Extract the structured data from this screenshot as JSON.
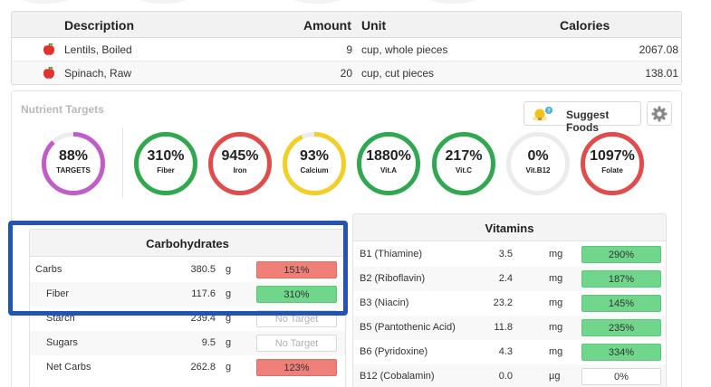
{
  "food_table": {
    "headers": {
      "description": "Description",
      "amount": "Amount",
      "unit": "Unit",
      "calories": "Calories"
    },
    "rows": [
      {
        "description": "Lentils, Boiled",
        "amount": "9",
        "unit": "cup, whole pieces",
        "calories": "2067.08",
        "icon": "apple-icon"
      },
      {
        "description": "Spinach, Raw",
        "amount": "20",
        "unit": "cup, cut pieces",
        "calories": "138.01",
        "icon": "apple-icon"
      }
    ]
  },
  "nutrient_targets": {
    "title": "Nutrient Targets",
    "suggest_label": "Suggest Foods",
    "rings": [
      {
        "pct": "88%",
        "name": "TARGETS",
        "color": "#c05dc8",
        "fill": 0.88
      },
      {
        "pct": "310%",
        "name": "Fiber",
        "color": "#2fa84f",
        "fill": 1.0
      },
      {
        "pct": "945%",
        "name": "Iron",
        "color": "#e24b4b",
        "fill": 1.0
      },
      {
        "pct": "93%",
        "name": "Calcium",
        "color": "#f1cf25",
        "fill": 0.93
      },
      {
        "pct": "1880%",
        "name": "Vit.A",
        "color": "#2fa84f",
        "fill": 1.0
      },
      {
        "pct": "217%",
        "name": "Vit.C",
        "color": "#2fa84f",
        "fill": 1.0
      },
      {
        "pct": "0%",
        "name": "Vit.B12",
        "color": "#cccccc",
        "fill": 0.0
      },
      {
        "pct": "1097%",
        "name": "Folate",
        "color": "#e24b4b",
        "fill": 1.0
      }
    ]
  },
  "carbohydrates": {
    "title": "Carbohydrates",
    "rows": [
      {
        "name": "Carbs",
        "amount": "380.5",
        "unit": "g",
        "target": "151%",
        "status": "red"
      },
      {
        "name": "Fiber",
        "amount": "117.6",
        "unit": "g",
        "target": "310%",
        "status": "green"
      },
      {
        "name": "Starch",
        "amount": "239.4",
        "unit": "g",
        "target": "No Target",
        "status": "none"
      },
      {
        "name": "Sugars",
        "amount": "9.5",
        "unit": "g",
        "target": "No Target",
        "status": "none"
      },
      {
        "name": "Net Carbs",
        "amount": "262.8",
        "unit": "g",
        "target": "123%",
        "status": "red"
      }
    ]
  },
  "vitamins": {
    "title": "Vitamins",
    "rows": [
      {
        "name": "B1 (Thiamine)",
        "amount": "3.5",
        "unit": "mg",
        "target": "290%",
        "status": "green"
      },
      {
        "name": "B2 (Riboflavin)",
        "amount": "2.4",
        "unit": "mg",
        "target": "187%",
        "status": "green"
      },
      {
        "name": "B3 (Niacin)",
        "amount": "23.2",
        "unit": "mg",
        "target": "145%",
        "status": "green"
      },
      {
        "name": "B5 (Pantothenic Acid)",
        "amount": "11.8",
        "unit": "mg",
        "target": "235%",
        "status": "green"
      },
      {
        "name": "B6 (Pyridoxine)",
        "amount": "4.3",
        "mg": "",
        "unit": "mg",
        "target": "334%",
        "status": "green"
      },
      {
        "name": "B12 (Cobalamin)",
        "amount": "0.0",
        "unit": "µg",
        "target": "0%",
        "status": "zero"
      }
    ]
  },
  "highlight_color": "#2254b4"
}
